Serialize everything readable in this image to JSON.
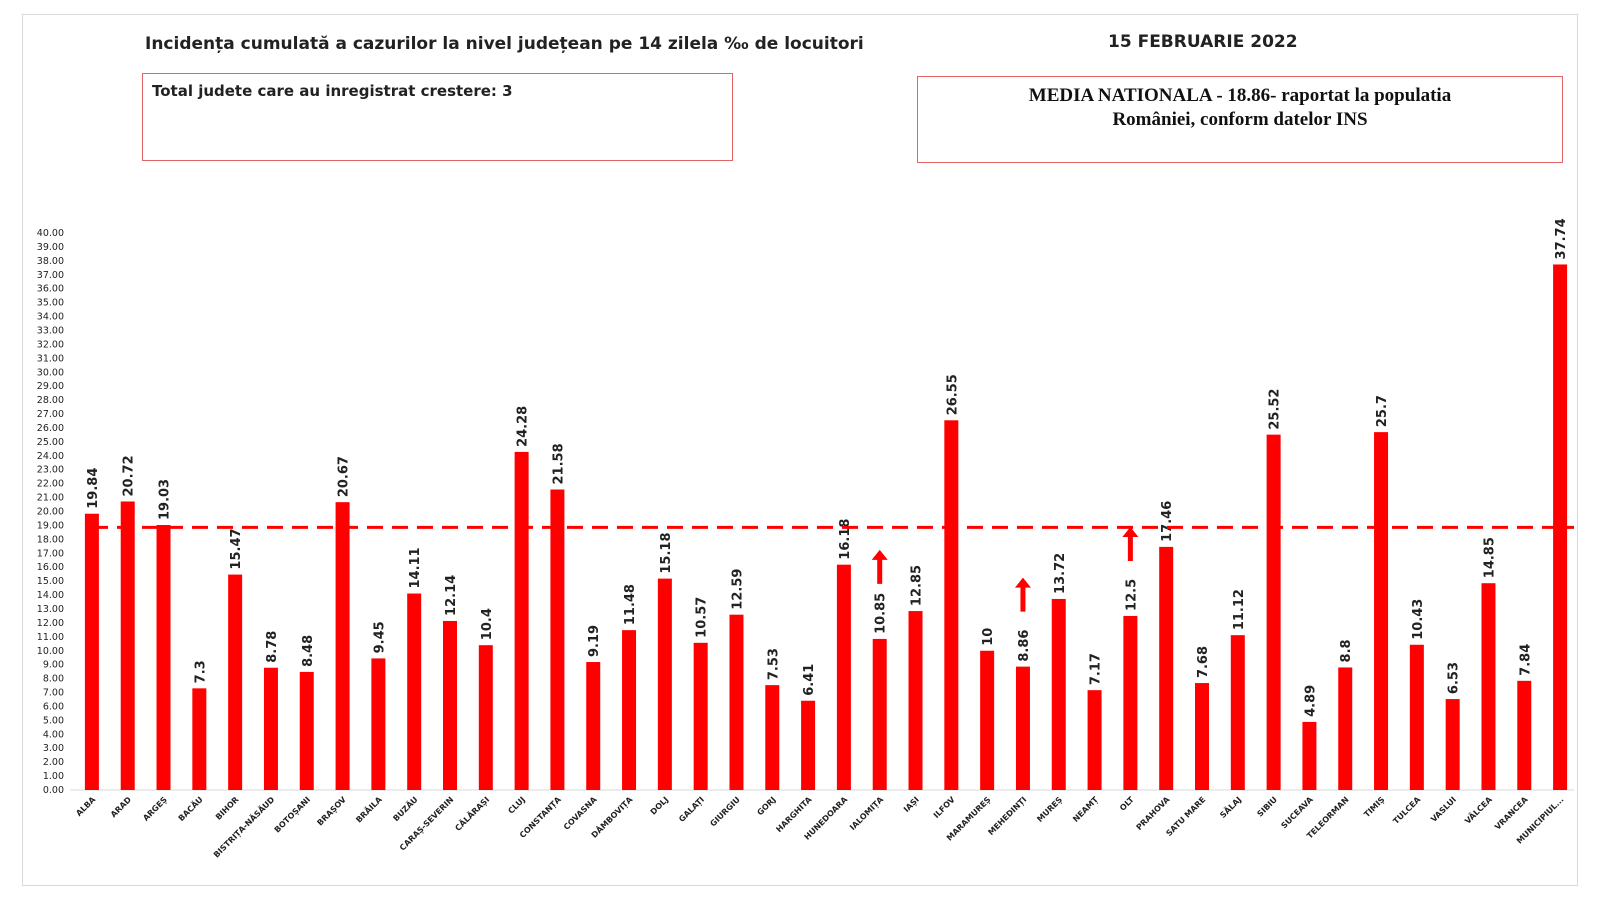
{
  "header": {
    "title": "Incidența cumulată a cazurilor la nivel județean pe 14 zilela ‰ de locuitori",
    "date": "15 FEBRUARIE 2022"
  },
  "info_left": {
    "text": "Total judete care au inregistrat crestere: 3"
  },
  "info_right": {
    "line1": "MEDIA NATIONALA - 18.86-  raportat la populatia",
    "line2": "României, conform datelor INS"
  },
  "chart_data": {
    "type": "bar",
    "categories": [
      "ALBA",
      "ARAD",
      "ARGEȘ",
      "BACĂU",
      "BIHOR",
      "BISTRIȚA-NĂSĂUD",
      "BOTOȘANI",
      "BRAȘOV",
      "BRĂILA",
      "BUZĂU",
      "CARAȘ-SEVERIN",
      "CĂLĂRAȘI",
      "CLUJ",
      "CONSTANȚA",
      "COVASNA",
      "DÂMBOVIȚA",
      "DOLJ",
      "GALAȚI",
      "GIURGIU",
      "GORJ",
      "HARGHITA",
      "HUNEDOARA",
      "IALOMIȚA",
      "IAȘI",
      "ILFOV",
      "MARAMUREȘ",
      "MEHEDINȚI",
      "MUREȘ",
      "NEAMȚ",
      "OLT",
      "PRAHOVA",
      "SATU MARE",
      "SĂLAJ",
      "SIBIU",
      "SUCEAVA",
      "TELEORMAN",
      "TIMIȘ",
      "TULCEA",
      "VASLUI",
      "VÂLCEA",
      "VRANCEA",
      "MUNICIPIUL..."
    ],
    "series": [
      {
        "values": [
          19.84,
          20.72,
          19.03,
          7.3,
          15.47,
          8.78,
          8.48,
          20.67,
          9.45,
          14.11,
          12.14,
          10.4,
          24.28,
          21.58,
          9.19,
          11.48,
          15.18,
          10.57,
          12.59,
          7.53,
          6.41,
          16.18,
          10.85,
          12.85,
          26.55,
          10,
          8.86,
          13.72,
          7.17,
          12.5,
          17.46,
          7.68,
          11.12,
          25.52,
          4.89,
          8.8,
          25.7,
          10.43,
          6.53,
          14.85,
          7.84,
          37.74
        ],
        "labels": [
          "19.84",
          "20.72",
          "19.03",
          "7.3",
          "15.47",
          "8.78",
          "8.48",
          "20.67",
          "9.45",
          "14.11",
          "12.14",
          "10.4",
          "24.28",
          "21.58",
          "9.19",
          "11.48",
          "15.18",
          "10.57",
          "12.59",
          "7.53",
          "6.41",
          "16.18",
          "10.85",
          "12.85",
          "26.55",
          "10",
          "8.86",
          "13.72",
          "7.17",
          "12.5",
          "17.46",
          "7.68",
          "11.12",
          "25.52",
          "4.89",
          "8.8",
          "25.7",
          "10.43",
          "6.53",
          "14.85",
          "7.84",
          "37.74"
        ]
      }
    ],
    "reference_line": {
      "value": 18.86
    },
    "increase_markers": [
      "IALOMIȚA",
      "MEHEDINȚI",
      "OLT"
    ],
    "ylim": [
      0,
      40
    ],
    "ytick_step": 1,
    "ytick_labels": [
      "0.00",
      "1.00",
      "2.00",
      "3.00",
      "4.00",
      "5.00",
      "6.00",
      "7.00",
      "8.00",
      "9.00",
      "10.00",
      "11.00",
      "12.00",
      "13.00",
      "14.00",
      "15.00",
      "16.00",
      "17.00",
      "18.00",
      "19.00",
      "20.00",
      "21.00",
      "22.00",
      "23.00",
      "24.00",
      "25.00",
      "26.00",
      "27.00",
      "28.00",
      "29.00",
      "30.00",
      "31.00",
      "32.00",
      "33.00",
      "34.00",
      "35.00",
      "36.00",
      "37.00",
      "38.00",
      "39.00",
      "40.00"
    ],
    "grid": false,
    "bar_color": "#ff0000",
    "reference_color": "#ff0000",
    "marker_color": "#ff0000",
    "axis_color": "#d9d9d9",
    "text_color": "#222222"
  }
}
